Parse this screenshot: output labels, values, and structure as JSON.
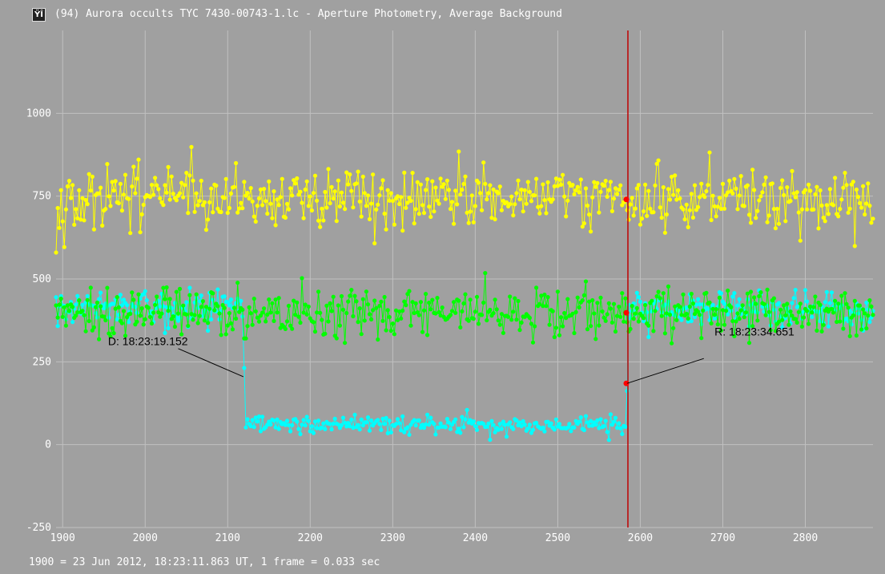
{
  "window": {
    "title": "(94) Aurora occults TYC 7430-00743-1.lc - Aperture Photometry, Average Background",
    "icon": "tangra-app-icon"
  },
  "footer": {
    "text": "1900 = 23 Jun 2012, 18:23:11.863 UT, 1 frame = 0.033 sec"
  },
  "colors": {
    "background": "#a0a0a0",
    "grid": "#c0c0c0",
    "cursor": "#c00000",
    "marker": "#ff0000",
    "yellow_series": "#ffff00",
    "green_series": "#00ff00",
    "cyan_series": "#00ffff"
  },
  "chart_data": {
    "type": "line",
    "title": "",
    "xlabel": "",
    "ylabel": "",
    "xlim": [
      1892,
      2882
    ],
    "ylim": [
      -250,
      1250
    ],
    "x_ticks": [
      1900,
      2000,
      2100,
      2200,
      2300,
      2400,
      2500,
      2600,
      2700,
      2800
    ],
    "y_ticks": [
      -250,
      0,
      250,
      500,
      750,
      1000
    ],
    "grid": true,
    "cursor_x": 2585,
    "cursor_values": [
      740,
      398,
      185
    ],
    "series": [
      {
        "color": "#ffff00",
        "mean": 740,
        "noise": 50,
        "x_start": 1892,
        "x_end": 2882
      },
      {
        "color": "#00ff00",
        "mean": 400,
        "noise": 40,
        "x_start": 1892,
        "x_end": 2882
      },
      {
        "color": "#00ffff",
        "x_start": 1892,
        "x_end": 2882,
        "segments": [
          {
            "from": 1892,
            "to": 2119,
            "mean": 410
          },
          {
            "from": 2119,
            "to": 2121,
            "mean": 205
          },
          {
            "from": 2121,
            "to": 2583,
            "mean": 60
          },
          {
            "from": 2583,
            "to": 2586,
            "mean": 185
          },
          {
            "from": 2586,
            "to": 2882,
            "mean": 410
          }
        ],
        "noise": 28
      }
    ],
    "annotations": [
      {
        "label": "D: 18:23:19.152",
        "x": 2119,
        "y": 205,
        "text_x": 1955,
        "text_y": 300,
        "anchor_x": 2040,
        "anchor_y": 290
      },
      {
        "label": "R: 18:23:34.651",
        "x": 2584,
        "y": 185,
        "text_x": 2690,
        "text_y": 330,
        "anchor_x": 2677,
        "anchor_y": 260
      }
    ]
  }
}
